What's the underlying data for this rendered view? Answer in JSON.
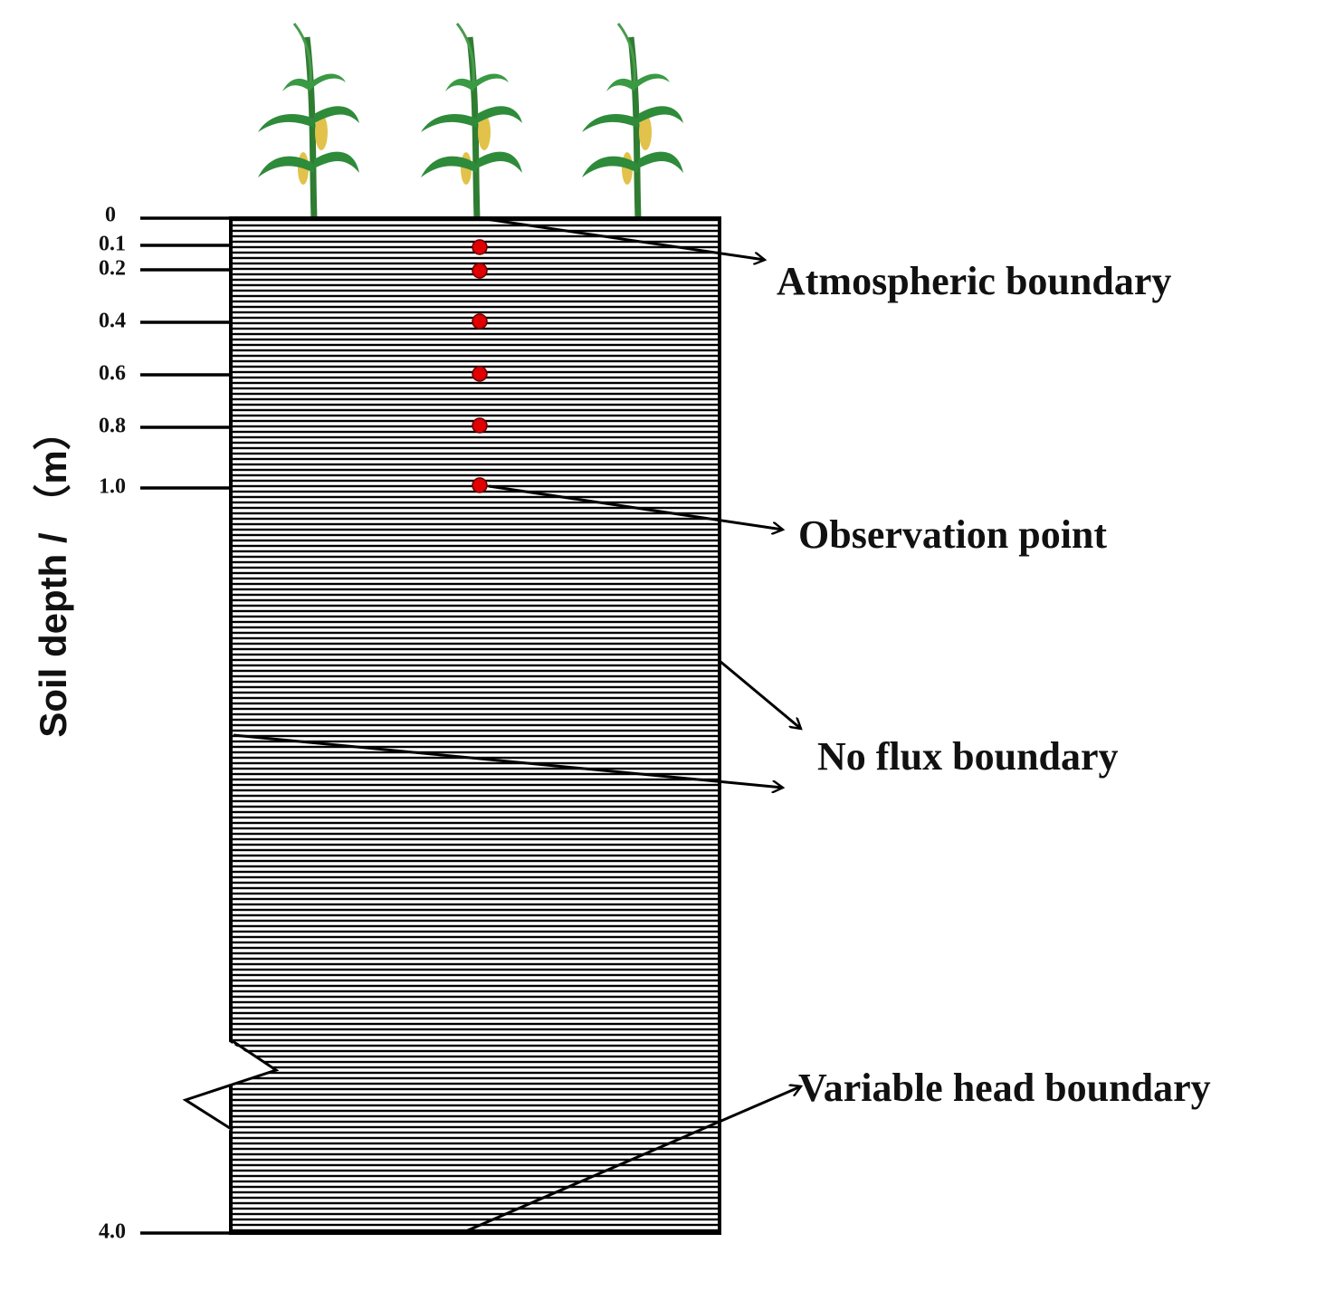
{
  "axis_title": "Soil depth / （m）",
  "depth_labels": [
    "0",
    "0.1",
    "0.2",
    "0.4",
    "0.6",
    "0.8",
    "1.0",
    "4.0"
  ],
  "annotations": [
    "Atmospheric boundary",
    "Observation point",
    "No flux boundary",
    "Variable head boundary"
  ]
}
